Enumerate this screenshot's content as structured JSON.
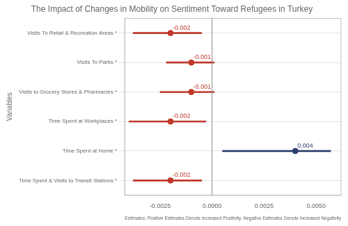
{
  "chart_data": {
    "type": "forest",
    "title": "The Impact of Changes in Mobility on Sentiment Toward Refugees in Turkey",
    "xlabel": "Estimates: Positive Estimates Denote Increased Positivity, Negative Estimates Denote Increased Negativity",
    "ylabel": "Variables",
    "orientation": "horizontal",
    "categories": [
      "Visits To Retail & Recreation Areas *",
      "Visits To Parks *",
      "Visits to Grocery Stores & Pharmacies *",
      "Time Spent at Workplaces *",
      "Time Spent at Home *",
      "Time Spent & Visits to Transit Stations *"
    ],
    "values": [
      -0.002,
      -0.001,
      -0.001,
      -0.002,
      0.004,
      -0.002
    ],
    "ci_lower": [
      -0.0038,
      -0.0022,
      -0.0025,
      -0.004,
      0.0005,
      -0.0038
    ],
    "ci_upper": [
      -0.0005,
      0.0001,
      0.0001,
      -0.0003,
      0.0057,
      -0.0005
    ],
    "colors": [
      "#c0392b",
      "#c0392b",
      "#c0392b",
      "#c0392b",
      "#2c3e6b",
      "#c0392b"
    ],
    "xlim": [
      -0.0042,
      0.0062
    ],
    "xticks": [
      -0.0025,
      {
        "value": 0,
        "label": "0.0000"
      },
      0.0025,
      {
        "value": 0.005,
        "label": "0.0050"
      }
    ],
    "vline_x": 0,
    "grid": true,
    "data_labels": true
  }
}
